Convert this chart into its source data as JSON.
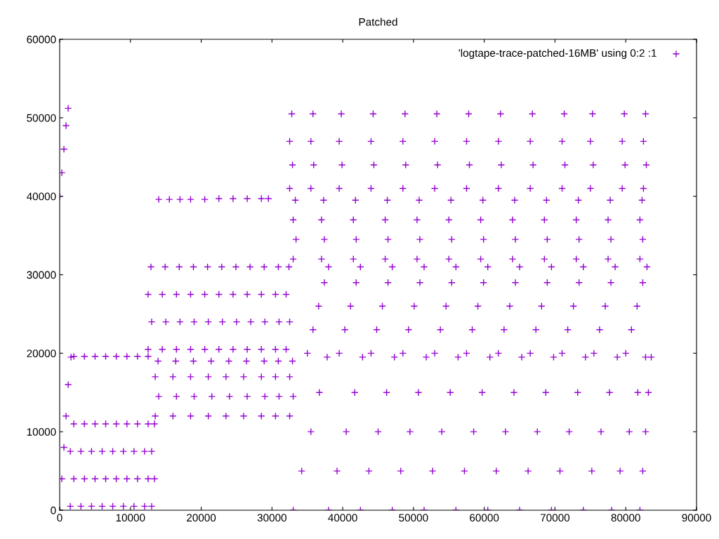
{
  "chart_data": {
    "type": "scatter",
    "title": "Patched",
    "xlim": [
      0,
      90000
    ],
    "xticks": [
      0,
      10000,
      20000,
      30000,
      40000,
      50000,
      60000,
      70000,
      80000,
      90000
    ],
    "ylim": [
      0,
      60000
    ],
    "yticks": [
      0,
      10000,
      20000,
      30000,
      40000,
      50000,
      60000
    ],
    "grid": false,
    "legend": "top right",
    "marker": "cross",
    "series": [
      {
        "name": "'logtape-trace-patched-16MB' using 0:2 :1",
        "color": "#9400d3",
        "x": [
          0,
          300,
          600,
          900,
          1200,
          0,
          300,
          600,
          900,
          1200,
          1600,
          2000,
          3500,
          5000,
          6500,
          8000,
          9500,
          11000,
          12500,
          14000,
          15500,
          17000,
          18500,
          20500,
          22500,
          24500,
          26500,
          28500,
          29500,
          33000,
          34200,
          35500,
          36700,
          37800,
          38000,
          39200,
          40500,
          41700,
          42800,
          42500,
          43700,
          45000,
          46200,
          47300,
          47000,
          48200,
          49500,
          50700,
          51800,
          51500,
          52700,
          54000,
          55200,
          56300,
          56000,
          57200,
          58500,
          59700,
          60800,
          60500,
          61700,
          63000,
          64200,
          65300,
          65000,
          66200,
          67500,
          68700,
          69800,
          69500,
          70700,
          72000,
          73200,
          74300,
          74000,
          75200,
          76500,
          77700,
          78800,
          78000,
          79200,
          80500,
          81700,
          82800,
          82000,
          82400,
          82800,
          83200,
          83600,
          35000,
          35800,
          36600,
          37400,
          38000,
          39500,
          40300,
          41100,
          41900,
          42500,
          44000,
          44800,
          45600,
          46400,
          47000,
          48500,
          49300,
          50100,
          50900,
          51500,
          53000,
          53800,
          54600,
          55400,
          56000,
          57500,
          58300,
          59100,
          59900,
          60500,
          62000,
          62800,
          63600,
          64400,
          65000,
          66500,
          67300,
          68100,
          68900,
          69500,
          71000,
          71800,
          72600,
          73400,
          74000,
          75500,
          76300,
          77100,
          77900,
          78500,
          80000,
          80800,
          81600,
          82400,
          83000,
          33000,
          33400,
          33000,
          33300,
          37000,
          37400,
          37000,
          37300,
          41500,
          41900,
          41500,
          41800,
          46000,
          46400,
          46000,
          46300,
          50500,
          50900,
          50500,
          50800,
          55000,
          55400,
          55000,
          55300,
          59500,
          59900,
          59500,
          59800,
          64000,
          64400,
          64000,
          64300,
          68500,
          68900,
          68500,
          68800,
          73000,
          73400,
          73000,
          73300,
          77500,
          77900,
          77500,
          77800,
          82000,
          82400,
          82000,
          82300,
          32500,
          32900,
          32500,
          32800,
          35500,
          35900,
          35500,
          35800,
          39500,
          39900,
          39500,
          39800,
          44000,
          44400,
          44000,
          44300,
          48500,
          48900,
          48500,
          48800,
          53000,
          53400,
          53000,
          53300,
          57500,
          57900,
          57500,
          57800,
          62000,
          62400,
          62000,
          62300,
          66500,
          66900,
          66500,
          66800,
          71000,
          71400,
          71000,
          71300,
          75000,
          75400,
          75000,
          75300,
          79500,
          79900,
          79500,
          79800,
          82500,
          82900,
          82500,
          82800,
          13500,
          14000,
          13500,
          13900,
          16000,
          16500,
          16000,
          16400,
          18500,
          19000,
          18500,
          18900,
          21000,
          21500,
          21000,
          21400,
          23500,
          24000,
          23500,
          23900,
          26000,
          26500,
          26000,
          26400,
          28500,
          29000,
          28500,
          28900,
          30500,
          31000,
          30500,
          30900,
          32500,
          33000,
          32500,
          32900,
          12500,
          13000,
          12500,
          12900,
          14500,
          15000,
          14500,
          14900,
          16500,
          17000,
          16500,
          16900,
          18500,
          19000,
          18500,
          18900,
          20500,
          21000,
          20500,
          20900,
          22500,
          23000,
          22500,
          22900,
          24500,
          25000,
          24500,
          24900,
          26500,
          27000,
          26500,
          26900,
          28500,
          29000,
          28500,
          28900,
          30500,
          31000,
          30500,
          30900,
          32000,
          32500,
          32000,
          32400,
          1500,
          2000,
          1500,
          2000,
          3000,
          3500,
          3000,
          3500,
          4500,
          5000,
          4500,
          5000,
          6000,
          6500,
          6000,
          6500,
          7500,
          8000,
          7500,
          8000,
          9000,
          9500,
          9000,
          9500,
          10500,
          11000,
          10500,
          11000,
          12000,
          12500,
          12000,
          12500,
          13000,
          13400,
          13000,
          13400
        ],
        "values": [
          40000,
          43000,
          46000,
          49000,
          51200,
          0,
          4000,
          8000,
          12000,
          16000,
          19500,
          19600,
          19600,
          19600,
          19600,
          19600,
          19600,
          19600,
          19600,
          39600,
          39600,
          39600,
          39600,
          39600,
          39700,
          39700,
          39700,
          39700,
          39700,
          0,
          5000,
          10000,
          15000,
          19500,
          0,
          5000,
          10000,
          15000,
          19500,
          0,
          5000,
          10000,
          15000,
          19500,
          0,
          5000,
          10000,
          15000,
          19500,
          0,
          5000,
          10000,
          15000,
          19500,
          0,
          5000,
          10000,
          15000,
          19500,
          0,
          5000,
          10000,
          15000,
          19500,
          0,
          5000,
          10000,
          15000,
          19500,
          0,
          5000,
          10000,
          15000,
          19500,
          0,
          5000,
          10000,
          15000,
          19500,
          0,
          5000,
          10000,
          15000,
          19500,
          0,
          5000,
          10000,
          15000,
          19500,
          20000,
          23000,
          26000,
          29000,
          31000,
          20000,
          23000,
          26000,
          29000,
          31000,
          20000,
          23000,
          26000,
          29000,
          31000,
          20000,
          23000,
          26000,
          29000,
          31000,
          20000,
          23000,
          26000,
          29000,
          31000,
          20000,
          23000,
          26000,
          29000,
          31000,
          20000,
          23000,
          26000,
          29000,
          31000,
          20000,
          23000,
          26000,
          29000,
          31000,
          20000,
          23000,
          26000,
          29000,
          31000,
          20000,
          23000,
          26000,
          29000,
          31000,
          20000,
          23000,
          26000,
          29000,
          31000,
          32000,
          34500,
          37000,
          39500,
          32000,
          34500,
          37000,
          39500,
          32000,
          34500,
          37000,
          39500,
          32000,
          34500,
          37000,
          39500,
          32000,
          34500,
          37000,
          39500,
          32000,
          34500,
          37000,
          39500,
          32000,
          34500,
          37000,
          39500,
          32000,
          34500,
          37000,
          39500,
          32000,
          34500,
          37000,
          39500,
          32000,
          34500,
          37000,
          39500,
          32000,
          34500,
          37000,
          39500,
          32000,
          34500,
          37000,
          39500,
          41000,
          44000,
          47000,
          50500,
          41000,
          44000,
          47000,
          50500,
          41000,
          44000,
          47000,
          50500,
          41000,
          44000,
          47000,
          50500,
          41000,
          44000,
          47000,
          50500,
          41000,
          44000,
          47000,
          50500,
          41000,
          44000,
          47000,
          50500,
          41000,
          44000,
          47000,
          50500,
          41000,
          44000,
          47000,
          50500,
          41000,
          44000,
          47000,
          50500,
          41000,
          44000,
          47000,
          50500,
          41000,
          44000,
          47000,
          50500,
          41000,
          44000,
          47000,
          50500,
          12000,
          14500,
          17000,
          19000,
          12000,
          14500,
          17000,
          19000,
          12000,
          14500,
          17000,
          19000,
          12000,
          14500,
          17000,
          19000,
          12000,
          14500,
          17000,
          19000,
          12000,
          14500,
          17000,
          19000,
          12000,
          14500,
          17000,
          19000,
          12000,
          14500,
          17000,
          19000,
          12000,
          14500,
          17000,
          19000,
          20500,
          24000,
          27500,
          31000,
          20500,
          24000,
          27500,
          31000,
          20500,
          24000,
          27500,
          31000,
          20500,
          24000,
          27500,
          31000,
          20500,
          24000,
          27500,
          31000,
          20500,
          24000,
          27500,
          31000,
          20500,
          24000,
          27500,
          31000,
          20500,
          24000,
          27500,
          31000,
          20500,
          24000,
          27500,
          31000,
          20500,
          24000,
          27500,
          31000,
          20500,
          24000,
          27500,
          31000,
          500,
          4000,
          7500,
          11000,
          500,
          4000,
          7500,
          11000,
          500,
          4000,
          7500,
          11000,
          500,
          4000,
          7500,
          11000,
          500,
          4000,
          7500,
          11000,
          500,
          4000,
          7500,
          11000,
          500,
          4000,
          7500,
          11000,
          500,
          4000,
          7500,
          11000,
          500,
          4000,
          7500,
          11000
        ]
      }
    ]
  }
}
